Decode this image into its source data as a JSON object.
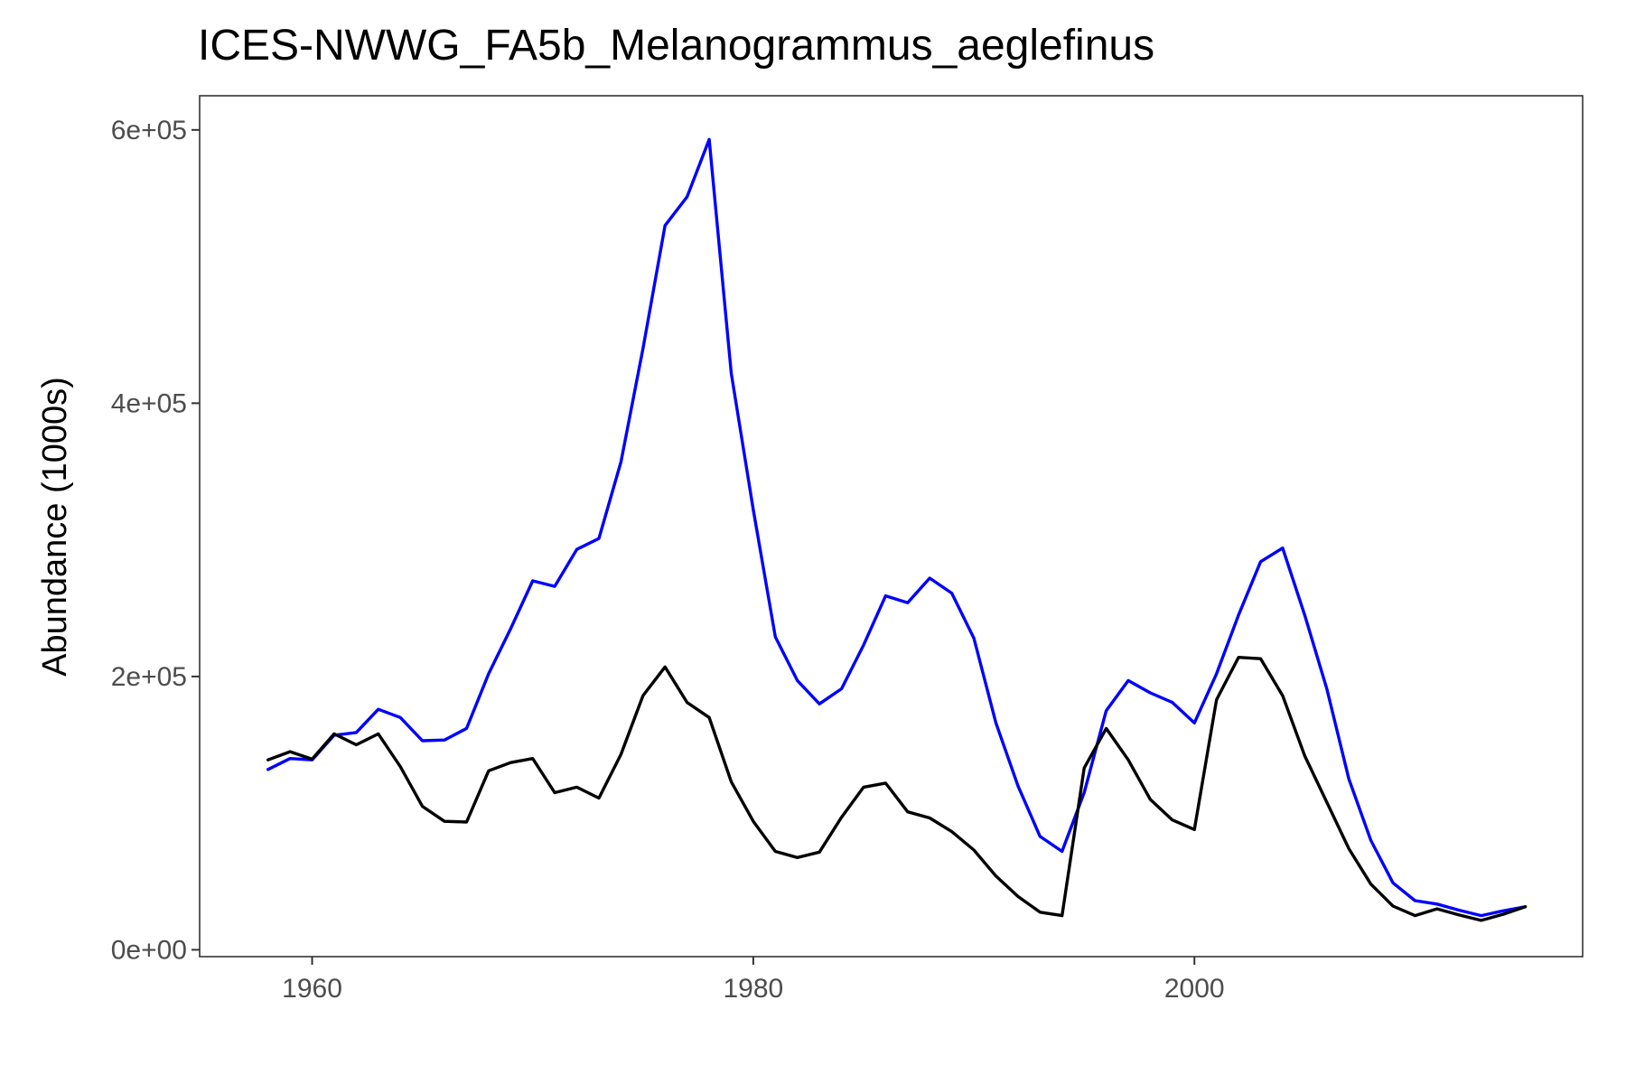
{
  "chart_data": {
    "type": "line",
    "title": "ICES-NWWG_FA5b_Melanogrammus_aeglefinus",
    "xlabel": "",
    "ylabel": "Abundance (1000s)",
    "xlim": [
      1954.9,
      2017.6
    ],
    "ylim": [
      -5000,
      625000
    ],
    "x_ticks": [
      1960,
      1980,
      2000
    ],
    "x_tick_labels": [
      "1960",
      "1980",
      "2000"
    ],
    "y_ticks": [
      0,
      200000,
      400000,
      600000
    ],
    "y_tick_labels": [
      "0e+00",
      "2e+05",
      "4e+05",
      "6e+05"
    ],
    "grid": false,
    "legend": "none",
    "series": [
      {
        "color": "#0000ff",
        "x": [
          1958,
          1959,
          1960,
          1961,
          1962,
          1963,
          1964,
          1965,
          1966,
          1967,
          1968,
          1969,
          1970,
          1971,
          1972,
          1973,
          1974,
          1975,
          1976,
          1977,
          1978,
          1979,
          1980,
          1981,
          1982,
          1983,
          1984,
          1985,
          1986,
          1987,
          1988,
          1989,
          1990,
          1991,
          1992,
          1993,
          1994,
          1995,
          1996,
          1997,
          1998,
          1999,
          2000,
          2001,
          2002,
          2003,
          2004,
          2005,
          2006,
          2007,
          2008,
          2009,
          2010,
          2011,
          2012,
          2013,
          2014,
          2015
        ],
        "y": [
          132000,
          140000,
          139000,
          157000,
          159000,
          176000,
          170000,
          153000,
          153500,
          162000,
          202000,
          235000,
          270000,
          266000,
          293000,
          301000,
          357000,
          440000,
          530000,
          551000,
          593000,
          422000,
          322000,
          229000,
          197000,
          180000,
          191000,
          223000,
          259000,
          254000,
          272000,
          261000,
          228000,
          166000,
          120000,
          83000,
          72000,
          115000,
          175000,
          197000,
          188000,
          181000,
          166000,
          202000,
          245000,
          284000,
          294000,
          245000,
          191000,
          125000,
          80000,
          49000,
          36000,
          33500,
          29000,
          25000,
          28500,
          31500
        ]
      },
      {
        "color": "#000000",
        "x": [
          1958,
          1959,
          1960,
          1961,
          1962,
          1963,
          1964,
          1965,
          1966,
          1967,
          1968,
          1969,
          1970,
          1971,
          1972,
          1973,
          1974,
          1975,
          1976,
          1977,
          1978,
          1979,
          1980,
          1981,
          1982,
          1983,
          1984,
          1985,
          1986,
          1987,
          1988,
          1989,
          1990,
          1991,
          1992,
          1993,
          1994,
          1995,
          1996,
          1997,
          1998,
          1999,
          2000,
          2001,
          2002,
          2003,
          2004,
          2005,
          2006,
          2007,
          2008,
          2009,
          2010,
          2011,
          2012,
          2013,
          2014,
          2015
        ],
        "y": [
          139000,
          145000,
          139500,
          158000,
          150000,
          158000,
          134000,
          105000,
          94000,
          93500,
          131000,
          137000,
          140000,
          115000,
          119000,
          111000,
          143000,
          186000,
          207000,
          181000,
          170000,
          123000,
          94000,
          72000,
          67500,
          71500,
          97000,
          119000,
          122000,
          101000,
          96500,
          86500,
          73000,
          54000,
          39000,
          27500,
          25000,
          133000,
          162000,
          139000,
          110000,
          95000,
          88000,
          183000,
          214000,
          213000,
          186000,
          142000,
          108000,
          74000,
          48000,
          32000,
          25000,
          30000,
          25500,
          21500,
          26000,
          31500
        ]
      }
    ]
  }
}
